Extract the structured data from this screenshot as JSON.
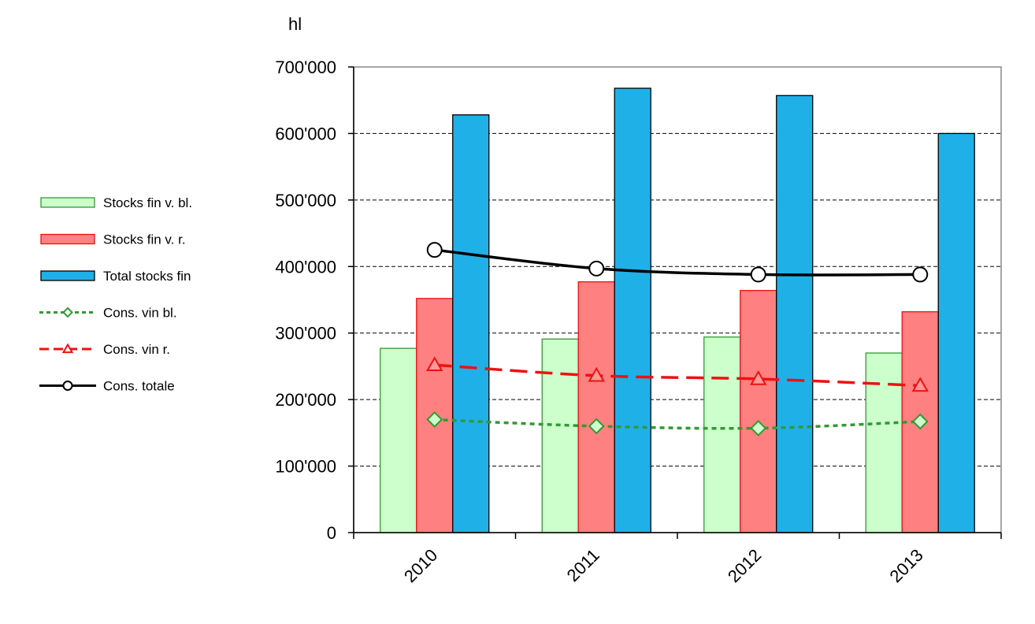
{
  "chart_data": {
    "type": "bar",
    "unit_label": "hl",
    "categories": [
      "2010",
      "2011",
      "2012",
      "2013"
    ],
    "ylim": [
      0,
      700000
    ],
    "yticks": [
      0,
      100000,
      200000,
      300000,
      400000,
      500000,
      600000,
      700000
    ],
    "ytick_labels": [
      "0",
      "100'000",
      "200'000",
      "300'000",
      "400'000",
      "500'000",
      "600'000",
      "700'000"
    ],
    "grid": true,
    "legend_position": "left",
    "bar_series": [
      {
        "name": "Stocks fin v. bl.",
        "values": [
          277000,
          291000,
          294000,
          270000
        ],
        "fill": "#ccffcc",
        "stroke": "#339933"
      },
      {
        "name": "Stocks fin v. r.",
        "values": [
          352000,
          377000,
          364000,
          332000
        ],
        "fill": "#ff8080",
        "stroke": "#ee1111"
      },
      {
        "name": "Total stocks fin",
        "values": [
          628000,
          668000,
          657000,
          600000
        ],
        "fill": "#1fb0e8",
        "stroke": "#000000"
      }
    ],
    "line_series": [
      {
        "name": "Cons. vin bl.",
        "values": [
          170000,
          160000,
          157000,
          167000
        ],
        "color": "#339933",
        "marker": "diamond",
        "dash": "6,5",
        "marker_fill": "#ccffcc"
      },
      {
        "name": "Cons. vin r.",
        "values": [
          252000,
          236000,
          231000,
          221000
        ],
        "color": "#ee1111",
        "marker": "triangle",
        "dash": "22,10",
        "marker_fill": "#ff9999"
      },
      {
        "name": "Cons. totale",
        "values": [
          425000,
          397000,
          388000,
          388000
        ],
        "color": "#000000",
        "marker": "circle",
        "dash": "",
        "marker_fill": "#ffffff"
      }
    ]
  }
}
